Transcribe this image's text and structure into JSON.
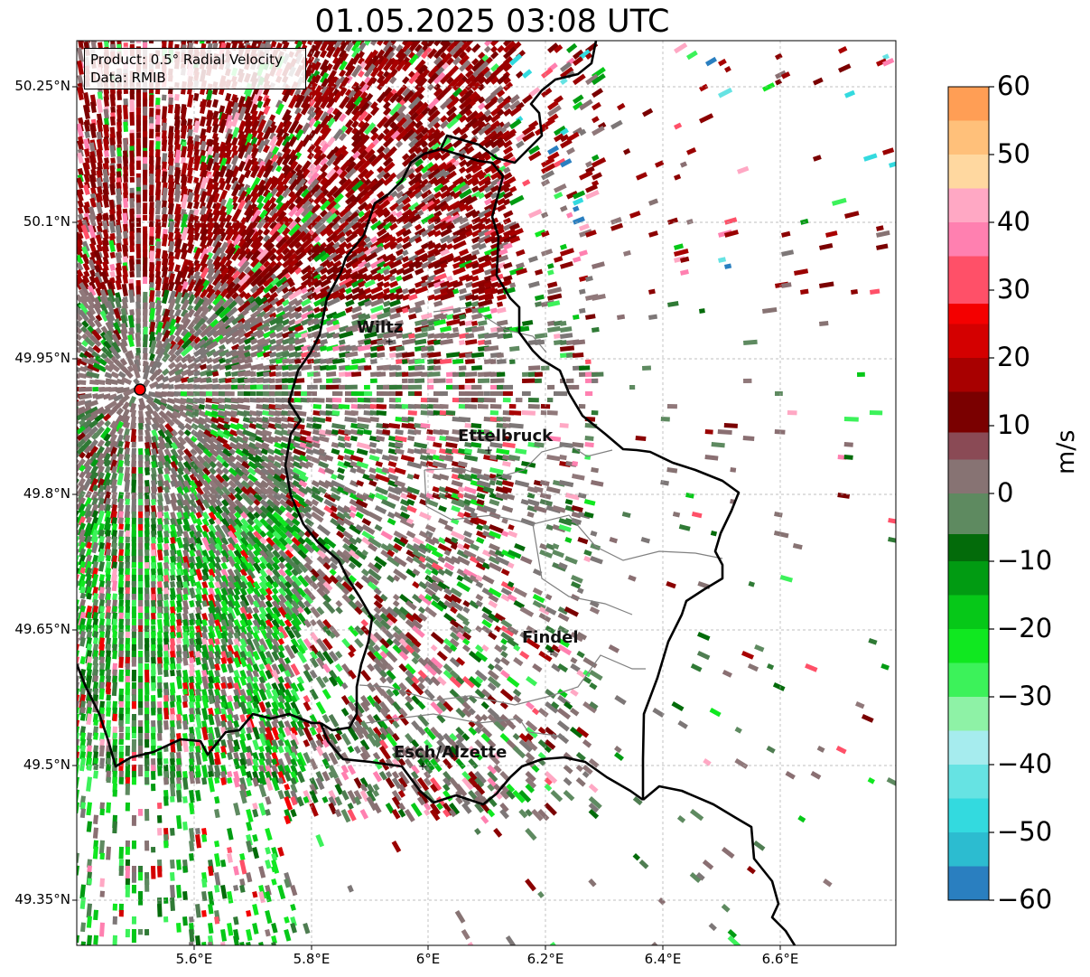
{
  "title": "01.05.2025 03:08 UTC",
  "info": {
    "product": "Product: 0.5° Radial Velocity",
    "source": "Data: RMIB"
  },
  "lat_labels": [
    "50.25°N",
    "50.1°N",
    "49.95°N",
    "49.8°N",
    "49.65°N",
    "49.5°N",
    "49.35°N"
  ],
  "lon_labels": [
    "5.6°E",
    "5.8°E",
    "6°E",
    "6.2°E",
    "6.4°E",
    "6.6°E"
  ],
  "cities": [
    {
      "name": "Wiltz"
    },
    {
      "name": "Ettelbruck"
    },
    {
      "name": "Findel"
    },
    {
      "name": "Esch/Alzette"
    }
  ],
  "colorbar": {
    "unit": "m/s",
    "tick_labels": [
      "60",
      "50",
      "40",
      "30",
      "20",
      "10",
      "0",
      "−10",
      "−20",
      "−30",
      "−40",
      "−50",
      "−60"
    ],
    "range": [
      -60,
      60
    ],
    "bands": [
      {
        "from": -60,
        "to": -55,
        "color": "#2a7fc0"
      },
      {
        "from": -55,
        "to": -50,
        "color": "#2cbcd0"
      },
      {
        "from": -50,
        "to": -45,
        "color": "#33dadf"
      },
      {
        "from": -45,
        "to": -40,
        "color": "#66e3e3"
      },
      {
        "from": -40,
        "to": -35,
        "color": "#a6ecee"
      },
      {
        "from": -35,
        "to": -30,
        "color": "#8ef2a6"
      },
      {
        "from": -30,
        "to": -25,
        "color": "#3cf25a"
      },
      {
        "from": -25,
        "to": -20,
        "color": "#10e820"
      },
      {
        "from": -20,
        "to": -15,
        "color": "#06c818"
      },
      {
        "from": -15,
        "to": -10,
        "color": "#019b12"
      },
      {
        "from": -10,
        "to": -6,
        "color": "#036b0a"
      },
      {
        "from": -6,
        "to": 0,
        "color": "#5e8a60"
      },
      {
        "from": 0,
        "to": 5,
        "color": "#877373"
      },
      {
        "from": 5,
        "to": 9,
        "color": "#8a4a55"
      },
      {
        "from": 9,
        "to": 15,
        "color": "#7a0000"
      },
      {
        "from": 15,
        "to": 20,
        "color": "#a80000"
      },
      {
        "from": 20,
        "to": 25,
        "color": "#d40000"
      },
      {
        "from": 25,
        "to": 28,
        "color": "#f40000"
      },
      {
        "from": 28,
        "to": 35,
        "color": "#ff5068"
      },
      {
        "from": 35,
        "to": 40,
        "color": "#ff80b0"
      },
      {
        "from": 40,
        "to": 45,
        "color": "#ffa8c4"
      },
      {
        "from": 45,
        "to": 50,
        "color": "#ffd8a0"
      },
      {
        "from": 50,
        "to": 55,
        "color": "#ffc07a"
      },
      {
        "from": 55,
        "to": 60,
        "color": "#ff9e55"
      }
    ]
  },
  "radar_site_color": "#ff0000"
}
